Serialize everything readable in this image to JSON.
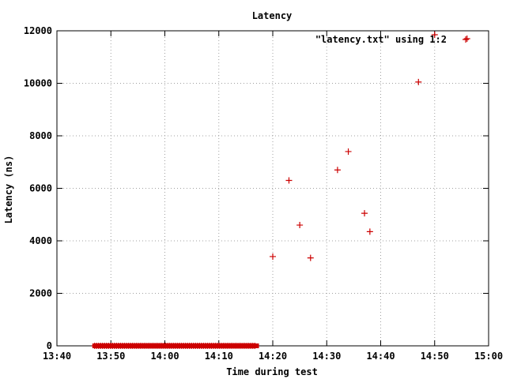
{
  "chart_data": {
    "type": "scatter",
    "title": "Latency",
    "xlabel": "Time during test",
    "ylabel": "Latency (ns)",
    "xlim": [
      "13:40",
      "15:00"
    ],
    "ylim": [
      0,
      12000
    ],
    "x_ticks": [
      "13:40",
      "13:50",
      "14:00",
      "14:10",
      "14:20",
      "14:30",
      "14:40",
      "14:50",
      "15:00"
    ],
    "y_ticks": [
      "0",
      "2000",
      "4000",
      "6000",
      "8000",
      "10000",
      "12000"
    ],
    "grid": true,
    "legend_position": "top-right",
    "colors": {
      "series": "#cc0000",
      "grid": "#a0a0a0",
      "axis": "#000000"
    },
    "series": [
      {
        "name": "\"latency.txt\" using 1:2",
        "marker": "plus",
        "dense_band": {
          "x_start": "13:47",
          "x_end": "14:17",
          "y": 0
        },
        "points": [
          {
            "x": "14:20",
            "y": 3400
          },
          {
            "x": "14:23",
            "y": 6300
          },
          {
            "x": "14:25",
            "y": 4600
          },
          {
            "x": "14:27",
            "y": 3350
          },
          {
            "x": "14:32",
            "y": 6700
          },
          {
            "x": "14:34",
            "y": 7400
          },
          {
            "x": "14:37",
            "y": 5050
          },
          {
            "x": "14:38",
            "y": 4350
          },
          {
            "x": "14:47",
            "y": 10050
          },
          {
            "x": "14:50",
            "y": 11850
          },
          {
            "x": "14:56",
            "y": 11700
          }
        ]
      }
    ]
  }
}
